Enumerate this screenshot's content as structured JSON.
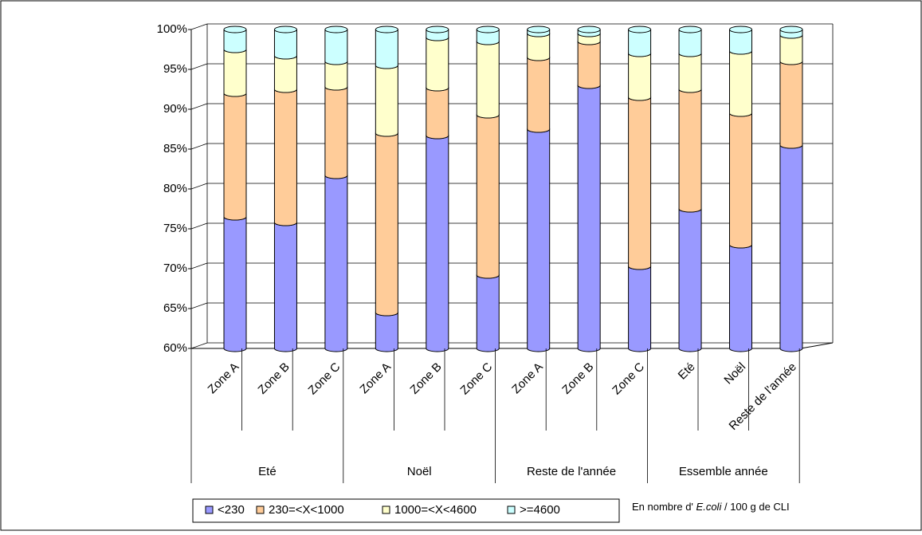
{
  "chart_data": {
    "type": "stacked_bar_3d",
    "groups": [
      {
        "name": "Eté",
        "categories": [
          "Zone A",
          "Zone B",
          "Zone C"
        ]
      },
      {
        "name": "Noël",
        "categories": [
          "Zone A",
          "Zone B",
          "Zone C"
        ]
      },
      {
        "name": "Reste de l'année",
        "categories": [
          "Zone A",
          "Zone B",
          "Zone C"
        ]
      },
      {
        "name": "Essemble année",
        "categories": [
          "Eté",
          "Noël",
          "Reste de l'année"
        ]
      }
    ],
    "series": [
      {
        "name": "<230",
        "color": "#9999ff",
        "values": [
          76.5,
          75.8,
          81.7,
          64.5,
          86.7,
          69.2,
          87.5,
          93,
          70.3,
          77.5,
          73,
          85.5
        ]
      },
      {
        "name": "230=<X<1000",
        "color": "#ffcc99",
        "values": [
          15.5,
          16.7,
          11.1,
          22.5,
          6,
          20.1,
          9,
          5.5,
          21.2,
          15,
          16.5,
          10.5
        ]
      },
      {
        "name": "1000=<X<4600",
        "color": "#ffffcc",
        "values": [
          5.5,
          4.2,
          3.2,
          8.5,
          6.3,
          9.2,
          3,
          1,
          5.5,
          4.5,
          7.8,
          3.3
        ]
      },
      {
        "name": ">=4600",
        "color": "#ccffff",
        "values": [
          2.5,
          3.3,
          4,
          4.5,
          1,
          1.5,
          0.5,
          0.5,
          3,
          3,
          2.7,
          0.7
        ]
      }
    ],
    "ylim": [
      60,
      100
    ],
    "yticks": [
      {
        "value": 60,
        "label": "60%"
      },
      {
        "value": 65,
        "label": "65%"
      },
      {
        "value": 70,
        "label": "70%"
      },
      {
        "value": 75,
        "label": "75%"
      },
      {
        "value": 80,
        "label": "80%"
      },
      {
        "value": 85,
        "label": "85%"
      },
      {
        "value": 90,
        "label": "90%"
      },
      {
        "value": 95,
        "label": "95%"
      },
      {
        "value": 100,
        "label": "100%"
      }
    ],
    "grid": true,
    "note": {
      "prefix": "En nombre d'",
      "italic": "E.coli",
      "suffix": "/ 100 g de CLI"
    }
  }
}
